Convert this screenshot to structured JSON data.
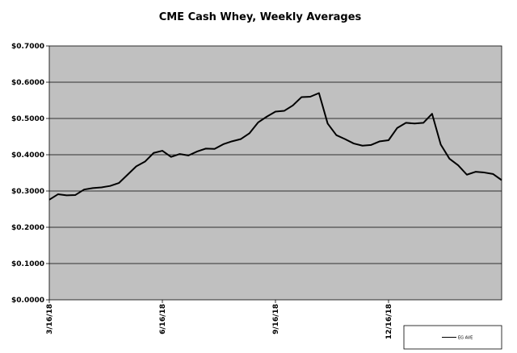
{
  "chart_data": {
    "type": "line",
    "title": "CME Cash Whey, Weekly Averages",
    "xlabel": "",
    "ylabel": "",
    "ylim": [
      0,
      0.7
    ],
    "y_ticks": [
      "$0.0000",
      "$0.1000",
      "$0.2000",
      "$0.3000",
      "$0.4000",
      "$0.5000",
      "$0.6000",
      "$0.7000"
    ],
    "x_ticks": [
      "3/16/18",
      "6/16/18",
      "9/16/18",
      "12/16/18"
    ],
    "grid": "horizontal",
    "legend_position": "bottom-right",
    "plot_background": "#c0c0c0",
    "line_color": "#000000",
    "series": [
      {
        "name": "EG AVE",
        "values": [
          0.276,
          0.291,
          0.288,
          0.289,
          0.304,
          0.308,
          0.31,
          0.314,
          0.322,
          0.345,
          0.368,
          0.381,
          0.405,
          0.411,
          0.394,
          0.402,
          0.398,
          0.409,
          0.417,
          0.416,
          0.429,
          0.437,
          0.443,
          0.459,
          0.489,
          0.505,
          0.519,
          0.521,
          0.536,
          0.559,
          0.56,
          0.57,
          0.486,
          0.454,
          0.443,
          0.431,
          0.425,
          0.427,
          0.437,
          0.44,
          0.474,
          0.488,
          0.486,
          0.488,
          0.513,
          0.428,
          0.389,
          0.371,
          0.345,
          0.353,
          0.351,
          0.347,
          0.33
        ]
      }
    ]
  }
}
